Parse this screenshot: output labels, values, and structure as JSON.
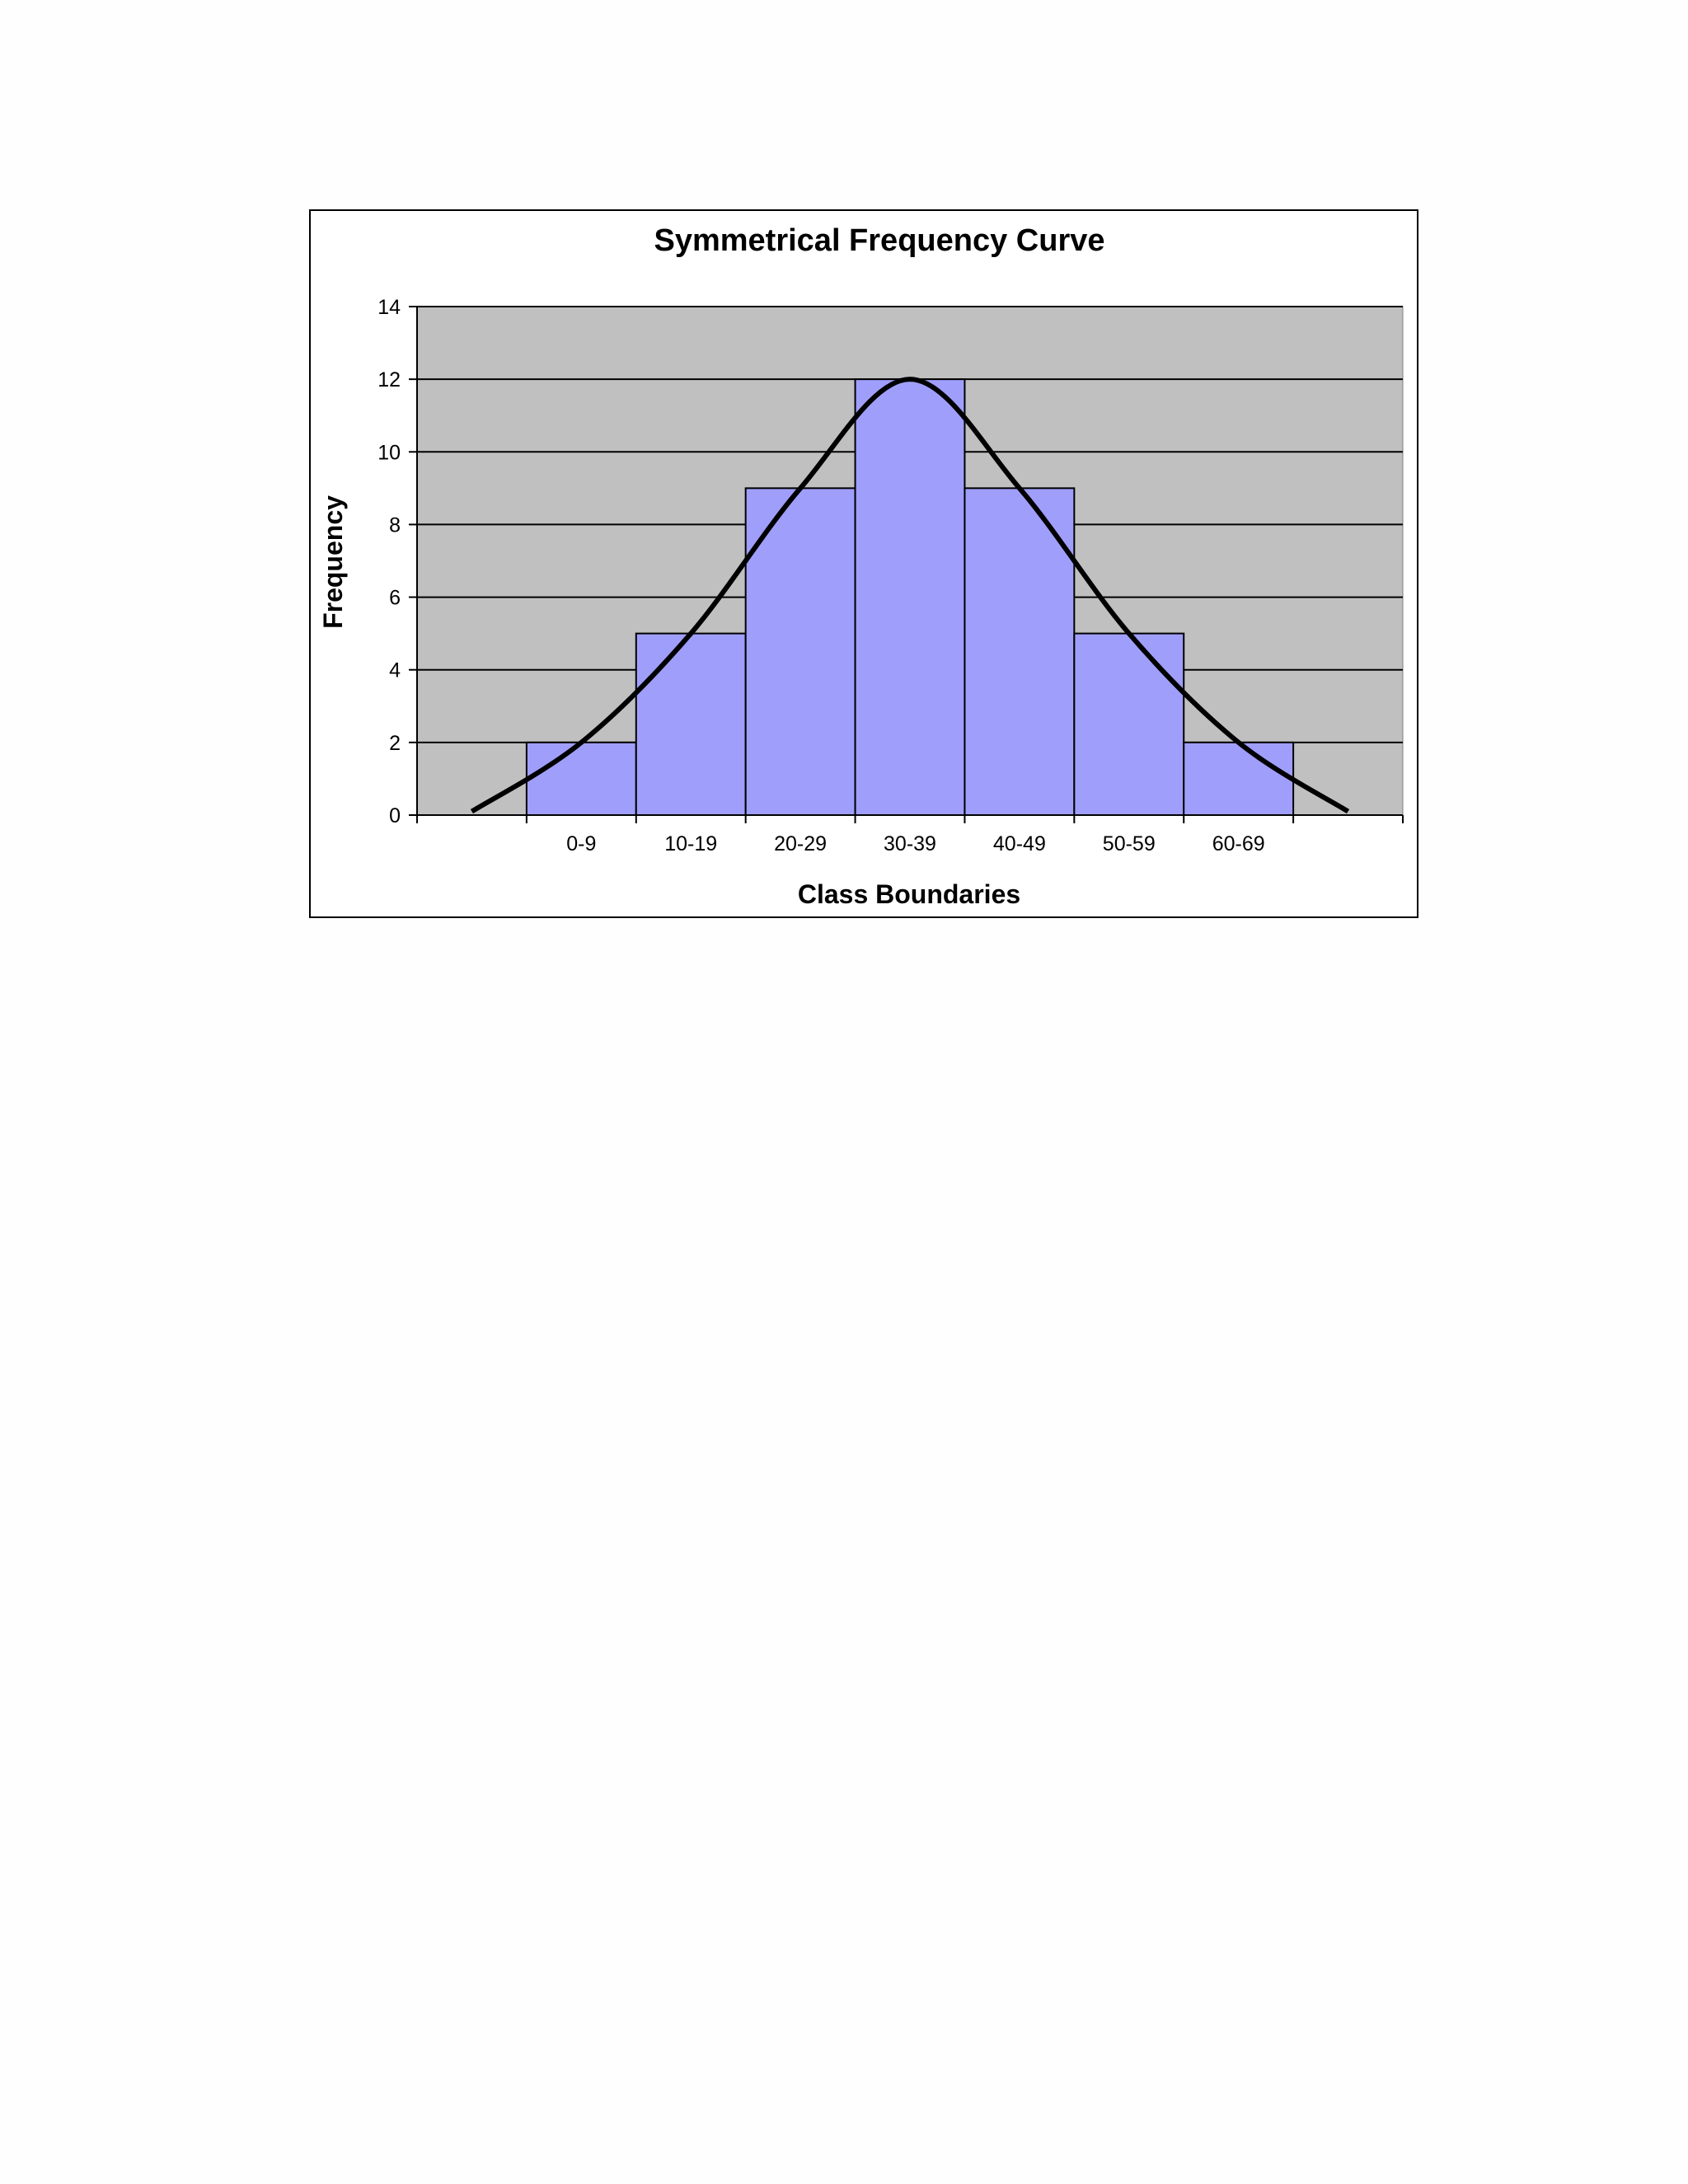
{
  "chart_data": {
    "type": "bar",
    "title": "Symmetrical Frequency Curve",
    "xlabel": "Class Boundaries",
    "ylabel": "Frequency",
    "categories": [
      "",
      "0-9",
      "10-19",
      "20-29",
      "30-39",
      "40-49",
      "50-59",
      "60-69",
      ""
    ],
    "values": [
      0,
      2,
      5,
      9,
      12,
      9,
      5,
      2,
      0
    ],
    "ylim": [
      0,
      14
    ],
    "yticks": [
      0,
      2,
      4,
      6,
      8,
      10,
      12,
      14
    ],
    "grid": true,
    "legend": "none",
    "curve": {
      "type": "line",
      "smooth": true,
      "values": [
        0.1,
        2,
        5,
        9,
        12,
        9,
        5,
        2,
        0.1
      ]
    },
    "colors": {
      "bar_fill": "#9f9ffb",
      "plot_background": "#c0c0c0",
      "gridline": "#000000",
      "curve": "#000000"
    }
  }
}
